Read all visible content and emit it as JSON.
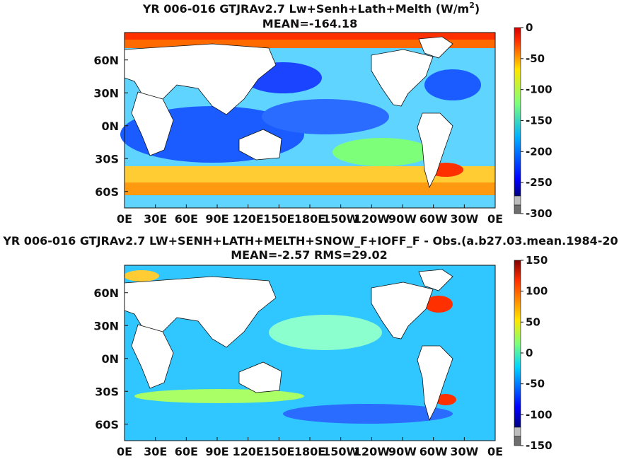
{
  "chart_data": [
    {
      "type": "heatmap",
      "title_main": "YR 006-016 GTJRAv2.7 Lw+Senh+Lath+Melth (W/m",
      "title_sup": "2",
      "title_end": ")",
      "subtitle": "MEAN=-164.18",
      "lat_ticks": [
        "60N",
        "30N",
        "0N",
        "30S",
        "60S"
      ],
      "lat_values": [
        60,
        30,
        0,
        -30,
        -60
      ],
      "lon_ticks": [
        "0E",
        "30E",
        "60E",
        "90E",
        "120E",
        "150E",
        "180E",
        "150W",
        "120W",
        "90W",
        "60W",
        "30W",
        "0E"
      ],
      "lon_values": [
        0,
        30,
        60,
        90,
        120,
        150,
        180,
        210,
        240,
        270,
        300,
        330,
        360
      ],
      "xlim": [
        0,
        360
      ],
      "ylim": [
        -75,
        85
      ],
      "colorbar": {
        "range": [
          -300,
          0
        ],
        "tick_labels": [
          "0",
          "-50",
          "-100",
          "-150",
          "-200",
          "-250",
          "-300"
        ],
        "tick_values": [
          0,
          -50,
          -100,
          -150,
          -200,
          -250,
          -300
        ]
      }
    },
    {
      "type": "heatmap",
      "title_main": "YR 006-016 GTJRAv2.7 LW+SENH+LATH+MELTH+SNOW_F+IOFF_F - Obs.(a.b27.03.mean.1984-20",
      "subtitle": "MEAN=-2.57 RMS=29.02",
      "lat_ticks": [
        "60N",
        "30N",
        "0N",
        "30S",
        "60S"
      ],
      "lat_values": [
        60,
        30,
        0,
        -30,
        -60
      ],
      "lon_ticks": [
        "0E",
        "30E",
        "60E",
        "90E",
        "120E",
        "150E",
        "180E",
        "150W",
        "120W",
        "90W",
        "60W",
        "30W",
        "0E"
      ],
      "lon_values": [
        0,
        30,
        60,
        90,
        120,
        150,
        180,
        210,
        240,
        270,
        300,
        330,
        360
      ],
      "xlim": [
        0,
        360
      ],
      "ylim": [
        -75,
        85
      ],
      "colorbar": {
        "range": [
          -150,
          150
        ],
        "tick_labels": [
          "150",
          "100",
          "50",
          "0",
          "-50",
          "-100",
          "-150"
        ],
        "tick_values": [
          150,
          100,
          50,
          0,
          -50,
          -100,
          -150
        ]
      }
    }
  ]
}
